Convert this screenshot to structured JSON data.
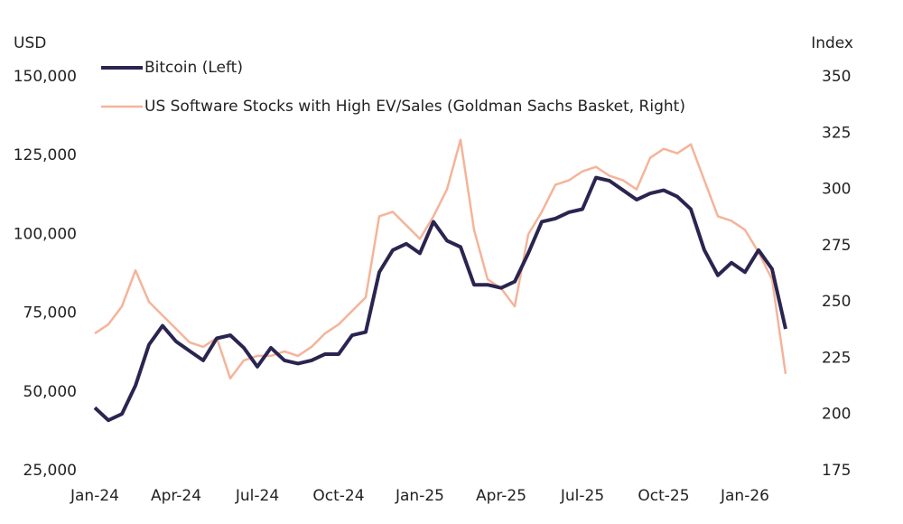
{
  "chart_data": {
    "type": "line",
    "y_label": "USD",
    "y2_label": "Index",
    "categories": [
      "Jan-24",
      null,
      null,
      null,
      null,
      null,
      "Apr-24",
      null,
      null,
      null,
      null,
      null,
      "Jul-24",
      null,
      null,
      null,
      null,
      null,
      "Oct-24",
      null,
      null,
      null,
      null,
      null,
      "Jan-25",
      null,
      null,
      null,
      null,
      null,
      "Apr-25",
      null,
      null,
      null,
      null,
      null,
      "Jul-25",
      null,
      null,
      null,
      null,
      null,
      "Oct-25",
      null,
      null,
      null,
      null,
      null,
      "Jan-26",
      null,
      null,
      null
    ],
    "series": [
      {
        "name": "Bitcoin (Left)",
        "color": "#2a2550",
        "axis": "y",
        "values": [
          45000,
          41000,
          43000,
          52000,
          65000,
          71000,
          66000,
          63000,
          60000,
          67000,
          68000,
          64000,
          58000,
          64000,
          60000,
          59000,
          60000,
          62000,
          62000,
          68000,
          69000,
          88000,
          95000,
          97000,
          94000,
          104000,
          98000,
          96000,
          84000,
          84000,
          83000,
          85000,
          94000,
          104000,
          105000,
          107000,
          108000,
          118000,
          117000,
          114000,
          111000,
          113000,
          114000,
          112000,
          108000,
          95000,
          87000,
          91000,
          88000,
          95000,
          89000,
          70000
        ]
      },
      {
        "name": "US Software Stocks with High EV/Sales (Goldman Sachs Basket, Right)",
        "color": "#f4b49a",
        "axis": "y2",
        "values": [
          236,
          240,
          248,
          264,
          250,
          244,
          238,
          232,
          230,
          234,
          216,
          224,
          226,
          226,
          228,
          226,
          230,
          236,
          240,
          246,
          252,
          288,
          290,
          284,
          278,
          288,
          300,
          322,
          282,
          260,
          256,
          248,
          280,
          290,
          302,
          304,
          308,
          310,
          306,
          304,
          300,
          314,
          318,
          316,
          320,
          304,
          288,
          286,
          282,
          272,
          260,
          218
        ]
      }
    ],
    "ylim": [
      25000,
      150000
    ],
    "yticks": [
      {
        "value": 25000,
        "label": "25,000"
      },
      {
        "value": 50000,
        "label": "50,000"
      },
      {
        "value": 75000,
        "label": "75,000"
      },
      {
        "value": 100000,
        "label": "100,000"
      },
      {
        "value": 125000,
        "label": "125,000"
      },
      {
        "value": 150000,
        "label": "150,000"
      }
    ],
    "y2lim": [
      175,
      350
    ],
    "y2ticks": [
      175,
      200,
      225,
      250,
      275,
      300,
      325,
      350
    ],
    "legend": "top-left"
  }
}
